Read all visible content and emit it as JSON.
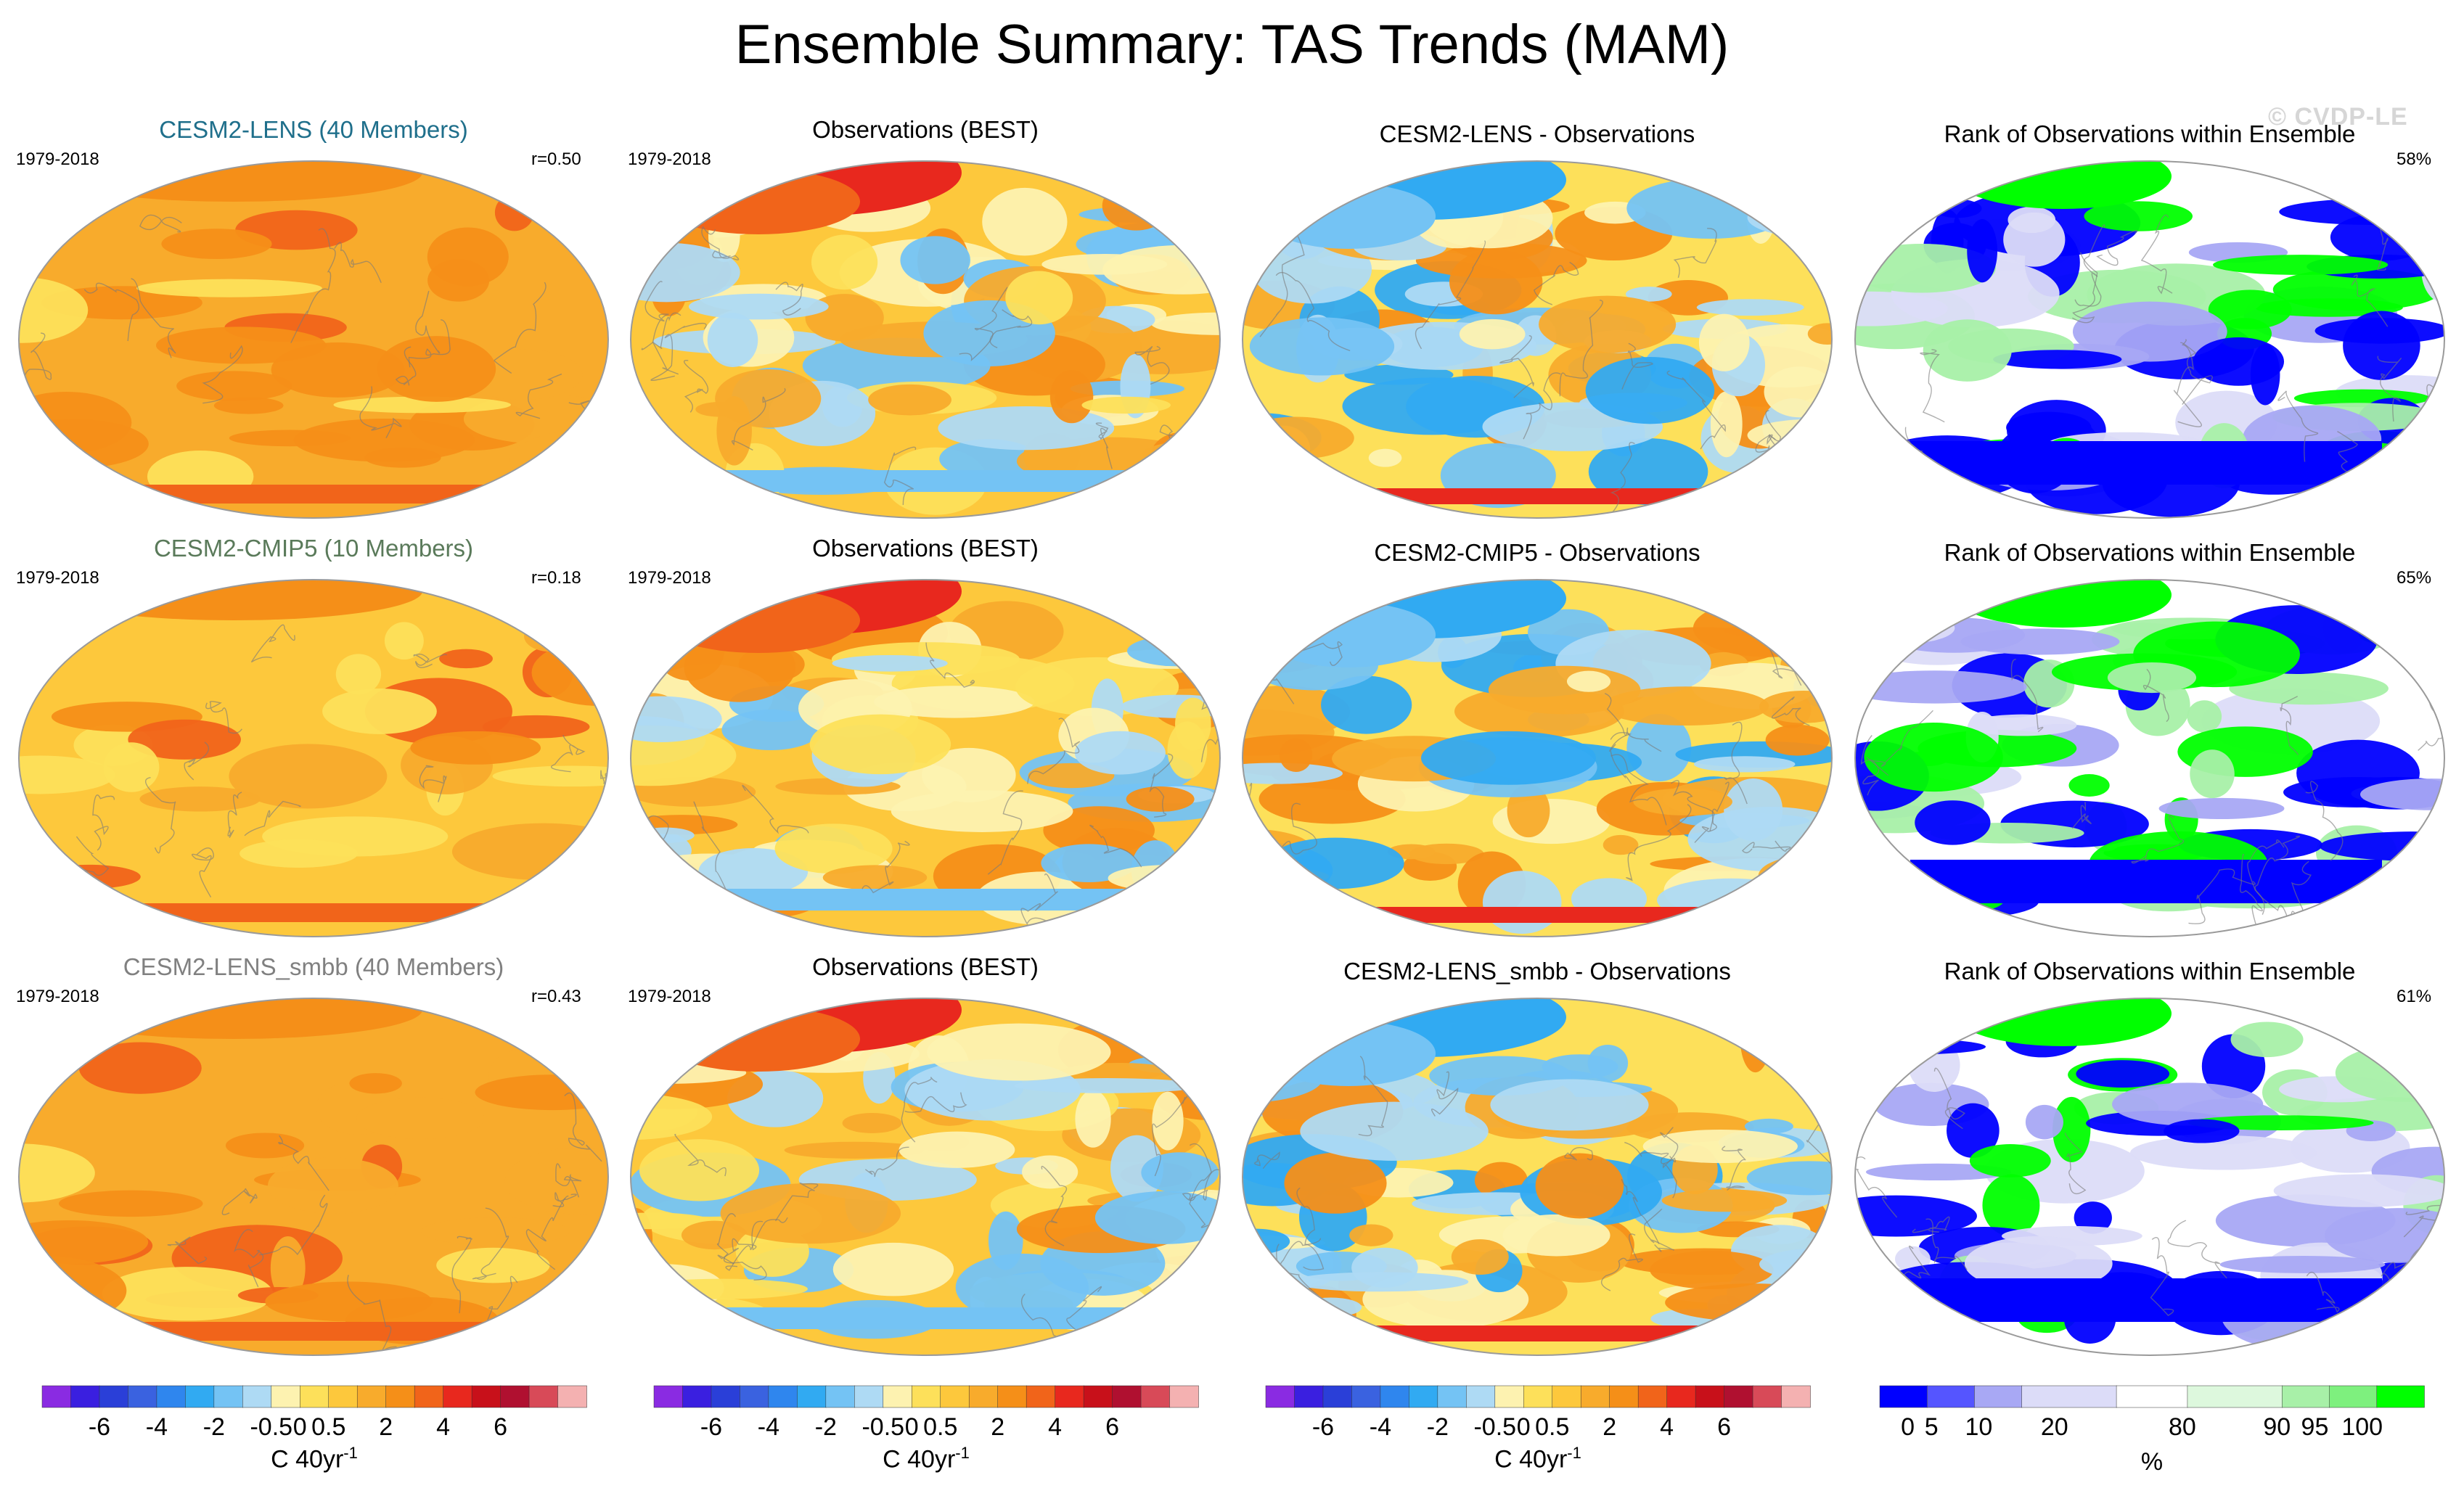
{
  "title": "Ensemble Summary: TAS Trends (MAM)",
  "watermark": "© CVDP-LE",
  "colors": {
    "title_lens": "#1f6f8b",
    "title_cmip5": "#5a7a5a",
    "title_smbb": "#808080",
    "trend_scale": [
      "#8a2be2",
      "#3a1fe0",
      "#2a3fd8",
      "#3a62e0",
      "#2f86ee",
      "#31aaf2",
      "#74c3f4",
      "#aedaf4",
      "#fdf2b0",
      "#fde05a",
      "#fdc83c",
      "#f8ab2c",
      "#f58f18",
      "#f1641a",
      "#e8281e",
      "#c8101a",
      "#b01030",
      "#d84a58",
      "#f4b1b1"
    ],
    "rank_scale": [
      "#0000ff",
      "#5555ff",
      "#a8a8f4",
      "#dcdcf8",
      "#ffffff",
      "#ddf8dd",
      "#a8f0a8",
      "#7ef07e",
      "#00ff00"
    ]
  },
  "rows": [
    {
      "model_title": "CESM2-LENS (40 Members)",
      "period": "1979-2018",
      "r_value": "r=0.50",
      "obs_title": "Observations (BEST)",
      "obs_period": "1979-2018",
      "diff_title": "CESM2-LENS - Observations",
      "rank_title": "Rank of Observations within Ensemble",
      "rank_pct": "58%"
    },
    {
      "model_title": "CESM2-CMIP5 (10 Members)",
      "period": "1979-2018",
      "r_value": "r=0.18",
      "obs_title": "Observations (BEST)",
      "obs_period": "1979-2018",
      "diff_title": "CESM2-CMIP5 - Observations",
      "rank_title": "Rank of Observations within Ensemble",
      "rank_pct": "65%"
    },
    {
      "model_title": "CESM2-LENS_smbb (40 Members)",
      "period": "1979-2018",
      "r_value": "r=0.43",
      "obs_title": "Observations (BEST)",
      "obs_period": "1979-2018",
      "diff_title": "CESM2-LENS_smbb - Observations",
      "rank_title": "Rank of Observations within Ensemble",
      "rank_pct": "61%"
    }
  ],
  "colorbars": {
    "trend": {
      "ticks": [
        "-6",
        "-4",
        "-2",
        "-0.5",
        "0",
        "0.5",
        "2",
        "4",
        "6"
      ],
      "unit_label": "C 40yr",
      "unit_exp": "-1"
    },
    "rank": {
      "ticks": [
        "0",
        "5",
        "10",
        "20",
        "80",
        "90",
        "95",
        "100"
      ],
      "unit_label": "%"
    }
  }
}
